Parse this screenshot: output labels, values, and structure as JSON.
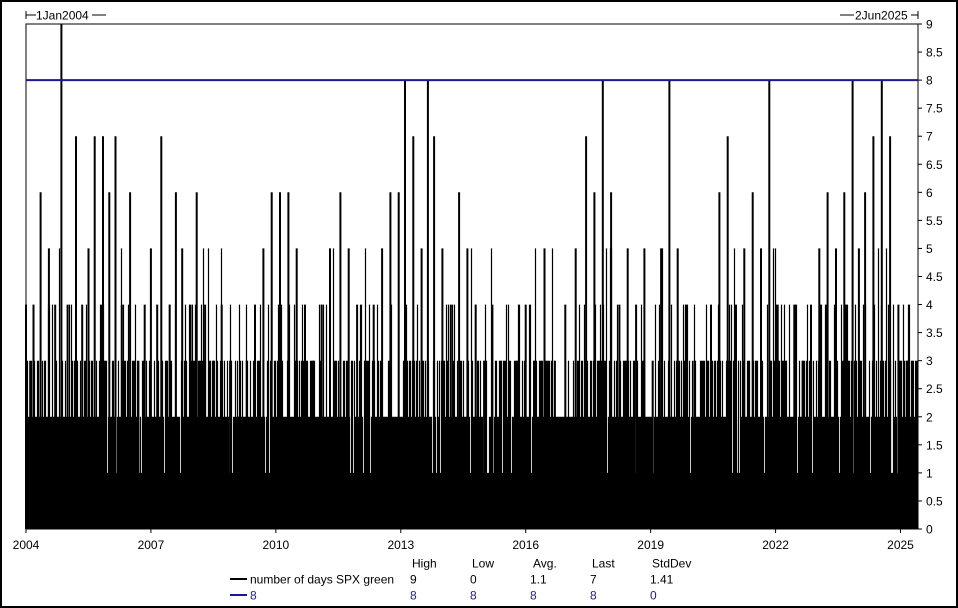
{
  "chart_data": {
    "type": "bar",
    "range_start_label": "1Jan2004",
    "range_end_label": "2Jun2025",
    "x_start_year": 2004.0,
    "x_end_year": 2025.42,
    "ylim": [
      0,
      9
    ],
    "y_ticks": [
      "0",
      "0.5",
      "1",
      "1.5",
      "2",
      "2.5",
      "3",
      "3.5",
      "4",
      "4.5",
      "5",
      "5.5",
      "6",
      "6.5",
      "7",
      "7.5",
      "8",
      "8.5",
      "9"
    ],
    "x_ticks": [
      "2004",
      "2007",
      "2010",
      "2013",
      "2016",
      "2019",
      "2022",
      "2025"
    ],
    "grid": false,
    "reference_line": {
      "value": 8,
      "color": "#1a1a8c"
    },
    "series": [
      {
        "name": "number of days SPX green",
        "color": "#000000",
        "peaks": [
          [
            2004.0,
            4
          ],
          [
            2004.1,
            3
          ],
          [
            2004.18,
            4
          ],
          [
            2004.35,
            6
          ],
          [
            2004.55,
            5
          ],
          [
            2004.7,
            4
          ],
          [
            2004.85,
            9
          ],
          [
            2005.0,
            4
          ],
          [
            2005.2,
            7
          ],
          [
            2005.35,
            4
          ],
          [
            2005.5,
            5
          ],
          [
            2005.65,
            7
          ],
          [
            2005.85,
            7
          ],
          [
            2006.0,
            6
          ],
          [
            2006.15,
            7
          ],
          [
            2006.3,
            4
          ],
          [
            2006.5,
            6
          ],
          [
            2006.7,
            3
          ],
          [
            2006.85,
            4
          ],
          [
            2007.0,
            5
          ],
          [
            2007.15,
            4
          ],
          [
            2007.25,
            7
          ],
          [
            2007.45,
            4
          ],
          [
            2007.6,
            6
          ],
          [
            2007.75,
            5
          ],
          [
            2007.95,
            4
          ],
          [
            2008.1,
            6
          ],
          [
            2008.3,
            4
          ],
          [
            2008.5,
            3
          ],
          [
            2008.7,
            4
          ],
          [
            2008.9,
            3
          ],
          [
            2009.1,
            2
          ],
          [
            2009.3,
            3
          ],
          [
            2009.5,
            4
          ],
          [
            2009.7,
            5
          ],
          [
            2009.9,
            6
          ],
          [
            2010.1,
            6
          ],
          [
            2010.3,
            6
          ],
          [
            2010.5,
            5
          ],
          [
            2010.7,
            4
          ],
          [
            2010.9,
            3
          ],
          [
            2011.1,
            4
          ],
          [
            2011.3,
            5
          ],
          [
            2011.55,
            6
          ],
          [
            2011.75,
            5
          ],
          [
            2011.95,
            4
          ],
          [
            2012.15,
            3
          ],
          [
            2012.35,
            4
          ],
          [
            2012.55,
            5
          ],
          [
            2012.75,
            6
          ],
          [
            2012.95,
            6
          ],
          [
            2013.1,
            8
          ],
          [
            2013.3,
            7
          ],
          [
            2013.5,
            5
          ],
          [
            2013.65,
            8
          ],
          [
            2013.8,
            7
          ],
          [
            2014.0,
            5
          ],
          [
            2014.2,
            4
          ],
          [
            2014.4,
            6
          ],
          [
            2014.6,
            5
          ],
          [
            2014.8,
            4
          ],
          [
            2015.0,
            3
          ],
          [
            2015.2,
            4
          ],
          [
            2015.4,
            3
          ],
          [
            2015.6,
            2
          ],
          [
            2015.8,
            3
          ],
          [
            2016.0,
            4
          ],
          [
            2016.2,
            3
          ],
          [
            2016.45,
            5
          ],
          [
            2016.7,
            3
          ],
          [
            2016.95,
            4
          ],
          [
            2017.2,
            5
          ],
          [
            2017.45,
            7
          ],
          [
            2017.65,
            6
          ],
          [
            2017.85,
            8
          ],
          [
            2018.05,
            6
          ],
          [
            2018.25,
            4
          ],
          [
            2018.45,
            5
          ],
          [
            2018.65,
            4
          ],
          [
            2018.85,
            5
          ],
          [
            2019.05,
            3
          ],
          [
            2019.25,
            5
          ],
          [
            2019.45,
            8
          ],
          [
            2019.65,
            5
          ],
          [
            2019.85,
            4
          ],
          [
            2020.05,
            3
          ],
          [
            2020.25,
            2
          ],
          [
            2020.45,
            4
          ],
          [
            2020.65,
            6
          ],
          [
            2020.85,
            7
          ],
          [
            2021.05,
            4
          ],
          [
            2021.25,
            5
          ],
          [
            2021.45,
            6
          ],
          [
            2021.65,
            5
          ],
          [
            2021.85,
            8
          ],
          [
            2022.05,
            4
          ],
          [
            2022.25,
            3
          ],
          [
            2022.45,
            4
          ],
          [
            2022.65,
            3
          ],
          [
            2022.85,
            4
          ],
          [
            2023.05,
            5
          ],
          [
            2023.25,
            6
          ],
          [
            2023.45,
            5
          ],
          [
            2023.65,
            6
          ],
          [
            2023.85,
            8
          ],
          [
            2024.0,
            5
          ],
          [
            2024.15,
            6
          ],
          [
            2024.35,
            7
          ],
          [
            2024.55,
            8
          ],
          [
            2024.75,
            7
          ],
          [
            2024.95,
            4
          ],
          [
            2025.15,
            3
          ],
          [
            2025.3,
            3
          ]
        ]
      },
      {
        "name": "8",
        "color": "#1a1a8c",
        "values": [
          8
        ]
      }
    ],
    "stats": {
      "headers": [
        "High",
        "Low",
        "Avg.",
        "Last",
        "StdDev"
      ],
      "rows": [
        {
          "label": "number of days SPX green",
          "color": "#000000",
          "values": [
            "9",
            "0",
            "1.1",
            "7",
            "1.41"
          ]
        },
        {
          "label": "8",
          "color": "#1a1a8c",
          "values": [
            "8",
            "8",
            "8",
            "8",
            "0"
          ]
        }
      ]
    }
  }
}
